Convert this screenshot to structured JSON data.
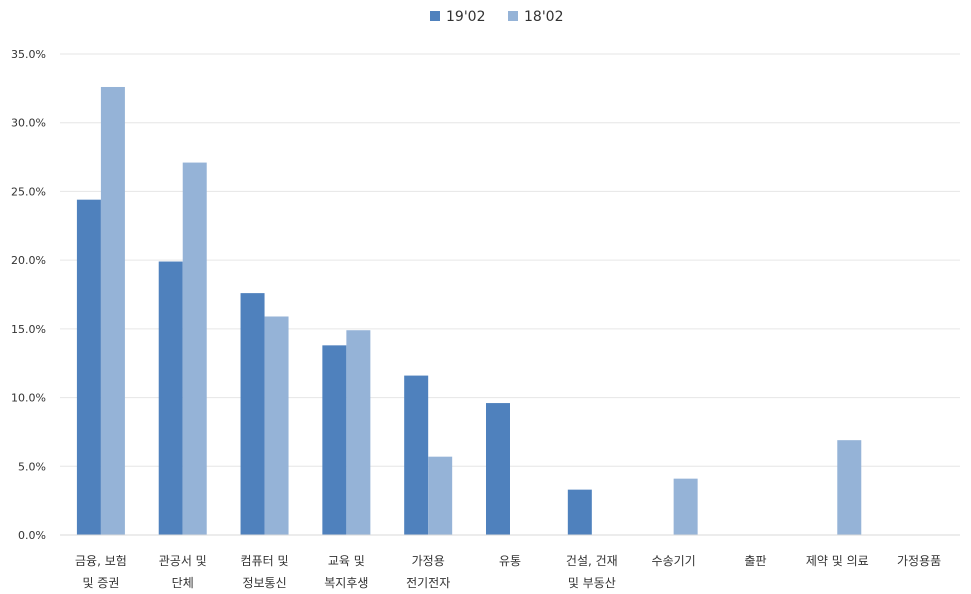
{
  "chart_data": {
    "type": "bar",
    "categories": [
      [
        "금융, 보험",
        "및 증권"
      ],
      [
        "관공서 및",
        "단체"
      ],
      [
        "컴퓨터 및",
        "정보통신"
      ],
      [
        "교육 및",
        "복지후생"
      ],
      [
        "가정용",
        "전기전자"
      ],
      [
        "유통"
      ],
      [
        "건설, 건재",
        "및 부동산"
      ],
      [
        "수송기기"
      ],
      [
        "출판"
      ],
      [
        "제약 및 의료"
      ],
      [
        "가정용품"
      ]
    ],
    "series": [
      {
        "name": "19'02",
        "color": "#4f81bd",
        "values": [
          24.4,
          19.9,
          17.6,
          13.8,
          11.6,
          9.6,
          3.3,
          0,
          0,
          0,
          0
        ]
      },
      {
        "name": "18'02",
        "color": "#95b3d7",
        "values": [
          32.6,
          27.1,
          15.9,
          14.9,
          5.7,
          0,
          0,
          4.1,
          0,
          6.9,
          0
        ]
      }
    ],
    "ylim": [
      0,
      35
    ],
    "yticks": [
      "0.0%",
      "5.0%",
      "10.0%",
      "15.0%",
      "20.0%",
      "25.0%",
      "30.0%",
      "35.0%"
    ],
    "grid": true,
    "legend_position": "top"
  }
}
